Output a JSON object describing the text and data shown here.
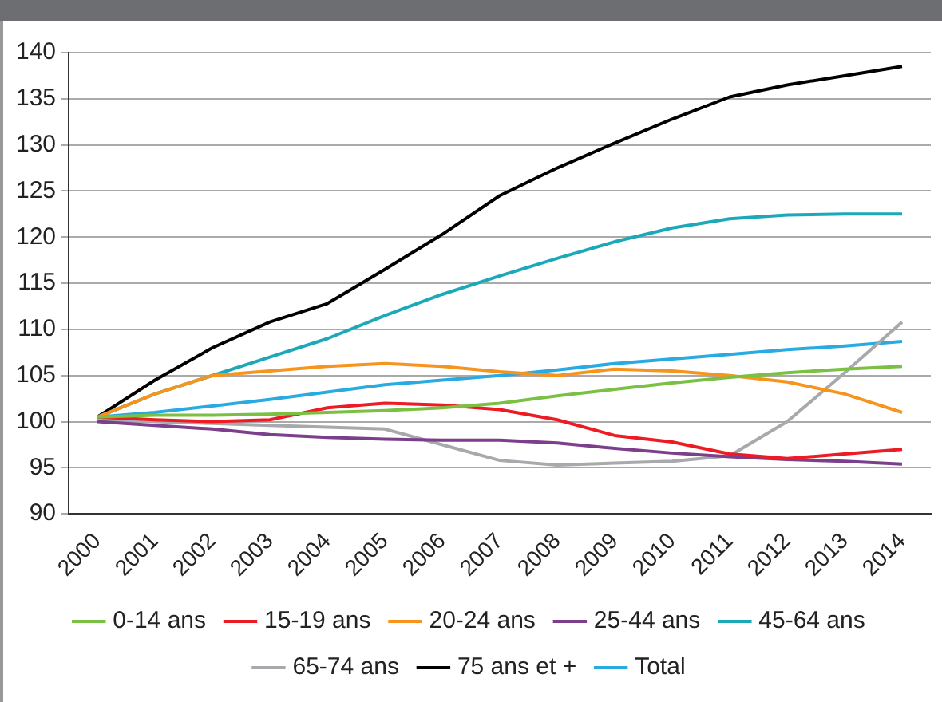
{
  "chart_data": {
    "type": "line",
    "categories": [
      "2000",
      "2001",
      "2002",
      "2003",
      "2004",
      "2005",
      "2006",
      "2007",
      "2008",
      "2009",
      "2010",
      "2011",
      "2012",
      "2013",
      "2014"
    ],
    "ylim": [
      90,
      140
    ],
    "yticks": [
      90,
      95,
      100,
      105,
      110,
      115,
      120,
      125,
      130,
      135,
      140
    ],
    "grid": "y",
    "legend": "bottom",
    "marker": "none",
    "line_style": "solid",
    "series": [
      {
        "name": "0-14 ans",
        "color": "#7ac143",
        "values": [
          100.5,
          100.7,
          100.7,
          100.8,
          101,
          101.2,
          101.5,
          102,
          102.8,
          103.5,
          104.2,
          104.8,
          105.3,
          105.7,
          106
        ]
      },
      {
        "name": "15-19 ans",
        "color": "#ed1c24",
        "values": [
          100.5,
          100.2,
          100,
          100.2,
          101.5,
          102,
          101.8,
          101.3,
          100.2,
          98.5,
          97.8,
          96.5,
          96,
          96.5,
          97
        ]
      },
      {
        "name": "20-24 ans",
        "color": "#f7941d",
        "values": [
          100.5,
          103,
          105,
          105.5,
          106,
          106.3,
          106,
          105.4,
          105,
          105.7,
          105.5,
          105,
          104.3,
          103,
          101
        ]
      },
      {
        "name": "25-44 ans",
        "color": "#7b3f8c",
        "values": [
          100,
          99.6,
          99.2,
          98.6,
          98.3,
          98.1,
          98,
          98,
          97.7,
          97.1,
          96.6,
          96.2,
          95.9,
          95.7,
          95.4
        ]
      },
      {
        "name": "45-64 ans",
        "color": "#1ba9b9",
        "values": [
          100.5,
          103,
          105,
          107,
          109,
          111.5,
          113.8,
          115.8,
          117.7,
          119.5,
          121,
          122,
          122.4,
          122.5,
          122.5
        ]
      },
      {
        "name": "65-74 ans",
        "color": "#a7a9ac",
        "values": [
          100.2,
          100,
          99.8,
          99.6,
          99.4,
          99.2,
          97.5,
          95.8,
          95.3,
          95.5,
          95.7,
          96.3,
          100,
          105.3,
          110.8
        ]
      },
      {
        "name": "75 ans et +",
        "color": "#000000",
        "values": [
          100.5,
          104.5,
          108,
          110.8,
          112.8,
          116.5,
          120.3,
          124.5,
          127.5,
          130.2,
          132.8,
          135.2,
          136.5,
          137.5,
          138.5
        ]
      },
      {
        "name": "Total",
        "color": "#29abe2",
        "values": [
          100.5,
          101,
          101.7,
          102.4,
          103.2,
          104,
          104.5,
          105,
          105.6,
          106.3,
          106.8,
          107.3,
          107.8,
          108.2,
          108.7
        ]
      }
    ]
  }
}
